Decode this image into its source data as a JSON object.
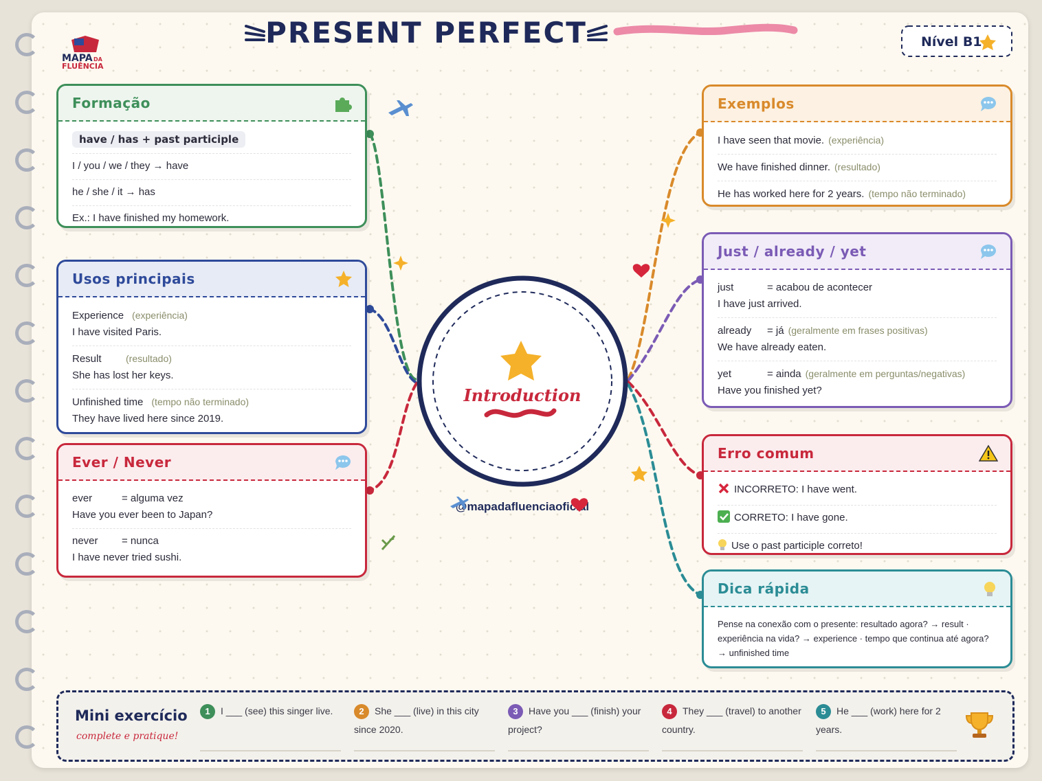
{
  "header": {
    "title": "PRESENT PERFECT",
    "level": "Nível B1",
    "logo": [
      "MAPA",
      "DA",
      "FLUÊNCIA"
    ]
  },
  "center": {
    "label": "Introduction",
    "handle": "@mapadafluenciaoficial"
  },
  "cards": [
    {
      "title": "Formação",
      "items": [
        {
          "pill": "have / has + past participle"
        },
        {
          "text": "I / you / we / they → have"
        },
        {
          "text": "he / she / it → has"
        },
        {
          "text": "Ex.: I have finished my homework."
        }
      ]
    },
    {
      "title": "Usos principais",
      "items": [
        {
          "term": "Experience",
          "note": "(experiência)",
          "example": "I have visited Paris."
        },
        {
          "term": "Result",
          "note": "(resultado)",
          "example": "She has lost her keys."
        },
        {
          "term": "Unfinished time",
          "note": "(tempo não terminado)",
          "example": "They have lived here since 2019."
        }
      ]
    },
    {
      "title": "Ever / Never",
      "items": [
        {
          "term": "ever",
          "meaning": "= alguma vez",
          "example": "Have you ever been to Japan?"
        },
        {
          "term": "never",
          "meaning": "= nunca",
          "example": "I have never tried sushi."
        }
      ]
    },
    {
      "title": "Exemplos",
      "items": [
        {
          "text": "I have seen that movie.",
          "note": "(experiência)"
        },
        {
          "text": "We have finished dinner.",
          "note": "(resultado)"
        },
        {
          "text": "He has worked here for 2 years.",
          "note": "(tempo não terminado)"
        }
      ]
    },
    {
      "title": "Just / already / yet",
      "items": [
        {
          "term": "just",
          "meaning": "= acabou de acontecer",
          "example": "I have just arrived."
        },
        {
          "term": "already",
          "meaning": "= já",
          "note": "(geralmente em frases positivas)",
          "example": "We have already eaten."
        },
        {
          "term": "yet",
          "meaning": "= ainda",
          "note": "(geralmente em perguntas/negativas)",
          "example": "Have you finished yet?"
        }
      ]
    },
    {
      "title": "Erro comum",
      "items": [
        {
          "text": "INCORRETO: I have went."
        },
        {
          "text": "CORRETO: I have gone."
        },
        {
          "text": "Use o past participle correto!"
        }
      ]
    },
    {
      "title": "Dica rápida",
      "items": [
        {
          "text": "Pense na conexão com o presente: resultado agora? → result · experiência na vida? → experience · tempo que continua até agora? → unfinished time"
        }
      ]
    }
  ],
  "exercise": {
    "title": "Mini exercício",
    "subtitle": "complete e pratique!",
    "items": [
      {
        "number": 1,
        "text": "I ___ (see) this singer live."
      },
      {
        "number": 2,
        "text": "She ___ (live) in this city since 2020."
      },
      {
        "number": 3,
        "text": "Have you ___ (finish) your project?"
      },
      {
        "number": 4,
        "text": "They ___ (travel) to another country."
      },
      {
        "number": 5,
        "text": "He ___ (work) here for 2 years."
      }
    ]
  }
}
